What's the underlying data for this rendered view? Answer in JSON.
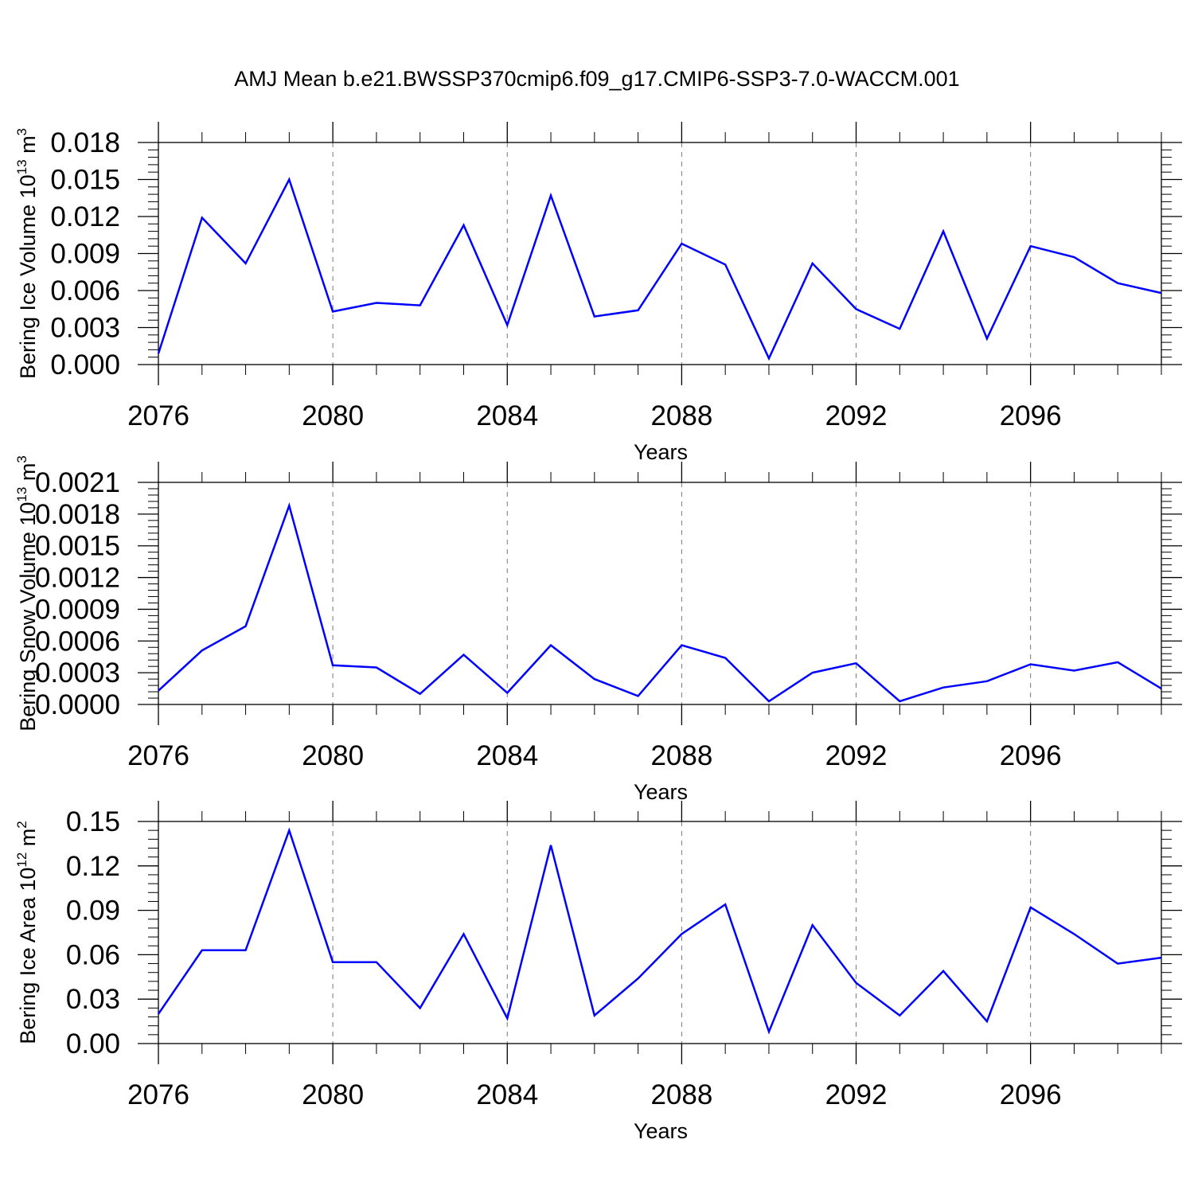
{
  "title": "AMJ Mean b.e21.BWSSP370cmip6.f09_g17.CMIP6-SSP3-7.0-WACCM.001",
  "colors": {
    "line": "#0000ff",
    "axis": "#000000",
    "grid": "#777777"
  },
  "chart_data": [
    {
      "type": "line",
      "ylabel": {
        "text": "Bering Ice Volume 10",
        "sup": "13",
        "unit": " m",
        "unit_sup": "3"
      },
      "xlabel": "Years",
      "xlim": [
        2076,
        2099
      ],
      "ylim": [
        0.0,
        0.018
      ],
      "x_ticks": [
        "2076",
        "2080",
        "2084",
        "2088",
        "2092",
        "2096"
      ],
      "y_ticks": [
        "0.000",
        "0.003",
        "0.006",
        "0.009",
        "0.012",
        "0.015",
        "0.018"
      ],
      "grid": "vertical dashed at major x ticks",
      "x": [
        2076,
        2077,
        2078,
        2079,
        2080,
        2081,
        2082,
        2083,
        2084,
        2085,
        2086,
        2087,
        2088,
        2089,
        2090,
        2091,
        2092,
        2093,
        2094,
        2095,
        2096,
        2097,
        2098,
        2099
      ],
      "values": [
        0.0009,
        0.0119,
        0.0082,
        0.015,
        0.0043,
        0.005,
        0.0048,
        0.0113,
        0.0032,
        0.0137,
        0.0039,
        0.0044,
        0.0098,
        0.0081,
        0.0005,
        0.0082,
        0.0045,
        0.0029,
        0.0108,
        0.0021,
        0.0096,
        0.0087,
        0.0066,
        0.0058
      ]
    },
    {
      "type": "line",
      "ylabel": {
        "text": "Bering Snow Volume 10",
        "sup": "13",
        "unit": " m",
        "unit_sup": "3"
      },
      "xlabel": "Years",
      "xlim": [
        2076,
        2099
      ],
      "ylim": [
        0.0,
        0.0021
      ],
      "x_ticks": [
        "2076",
        "2080",
        "2084",
        "2088",
        "2092",
        "2096"
      ],
      "y_ticks": [
        "0.0000",
        "0.0003",
        "0.0006",
        "0.0009",
        "0.0012",
        "0.0015",
        "0.0018",
        "0.0021"
      ],
      "grid": "vertical dashed at major x ticks",
      "x": [
        2076,
        2077,
        2078,
        2079,
        2080,
        2081,
        2082,
        2083,
        2084,
        2085,
        2086,
        2087,
        2088,
        2089,
        2090,
        2091,
        2092,
        2093,
        2094,
        2095,
        2096,
        2097,
        2098,
        2099
      ],
      "values": [
        0.00013,
        0.00051,
        0.00074,
        0.00188,
        0.00037,
        0.00035,
        0.0001,
        0.00047,
        0.00011,
        0.00056,
        0.00024,
        8e-05,
        0.00056,
        0.00044,
        3e-05,
        0.0003,
        0.00039,
        3e-05,
        0.00016,
        0.00022,
        0.00038,
        0.00032,
        0.0004,
        0.00015
      ]
    },
    {
      "type": "line",
      "ylabel": {
        "text": "Bering Ice Area 10",
        "sup": "12",
        "unit": " m",
        "unit_sup": "2"
      },
      "xlabel": "Years",
      "xlim": [
        2076,
        2099
      ],
      "ylim": [
        0.0,
        0.15
      ],
      "x_ticks": [
        "2076",
        "2080",
        "2084",
        "2088",
        "2092",
        "2096"
      ],
      "y_ticks": [
        "0.00",
        "0.03",
        "0.06",
        "0.09",
        "0.12",
        "0.15"
      ],
      "grid": "vertical dashed at major x ticks",
      "x": [
        2076,
        2077,
        2078,
        2079,
        2080,
        2081,
        2082,
        2083,
        2084,
        2085,
        2086,
        2087,
        2088,
        2089,
        2090,
        2091,
        2092,
        2093,
        2094,
        2095,
        2096,
        2097,
        2098,
        2099
      ],
      "values": [
        0.02,
        0.063,
        0.063,
        0.144,
        0.055,
        0.055,
        0.024,
        0.074,
        0.017,
        0.134,
        0.019,
        0.044,
        0.074,
        0.094,
        0.008,
        0.08,
        0.041,
        0.019,
        0.049,
        0.015,
        0.092,
        0.074,
        0.054,
        0.058
      ]
    }
  ]
}
